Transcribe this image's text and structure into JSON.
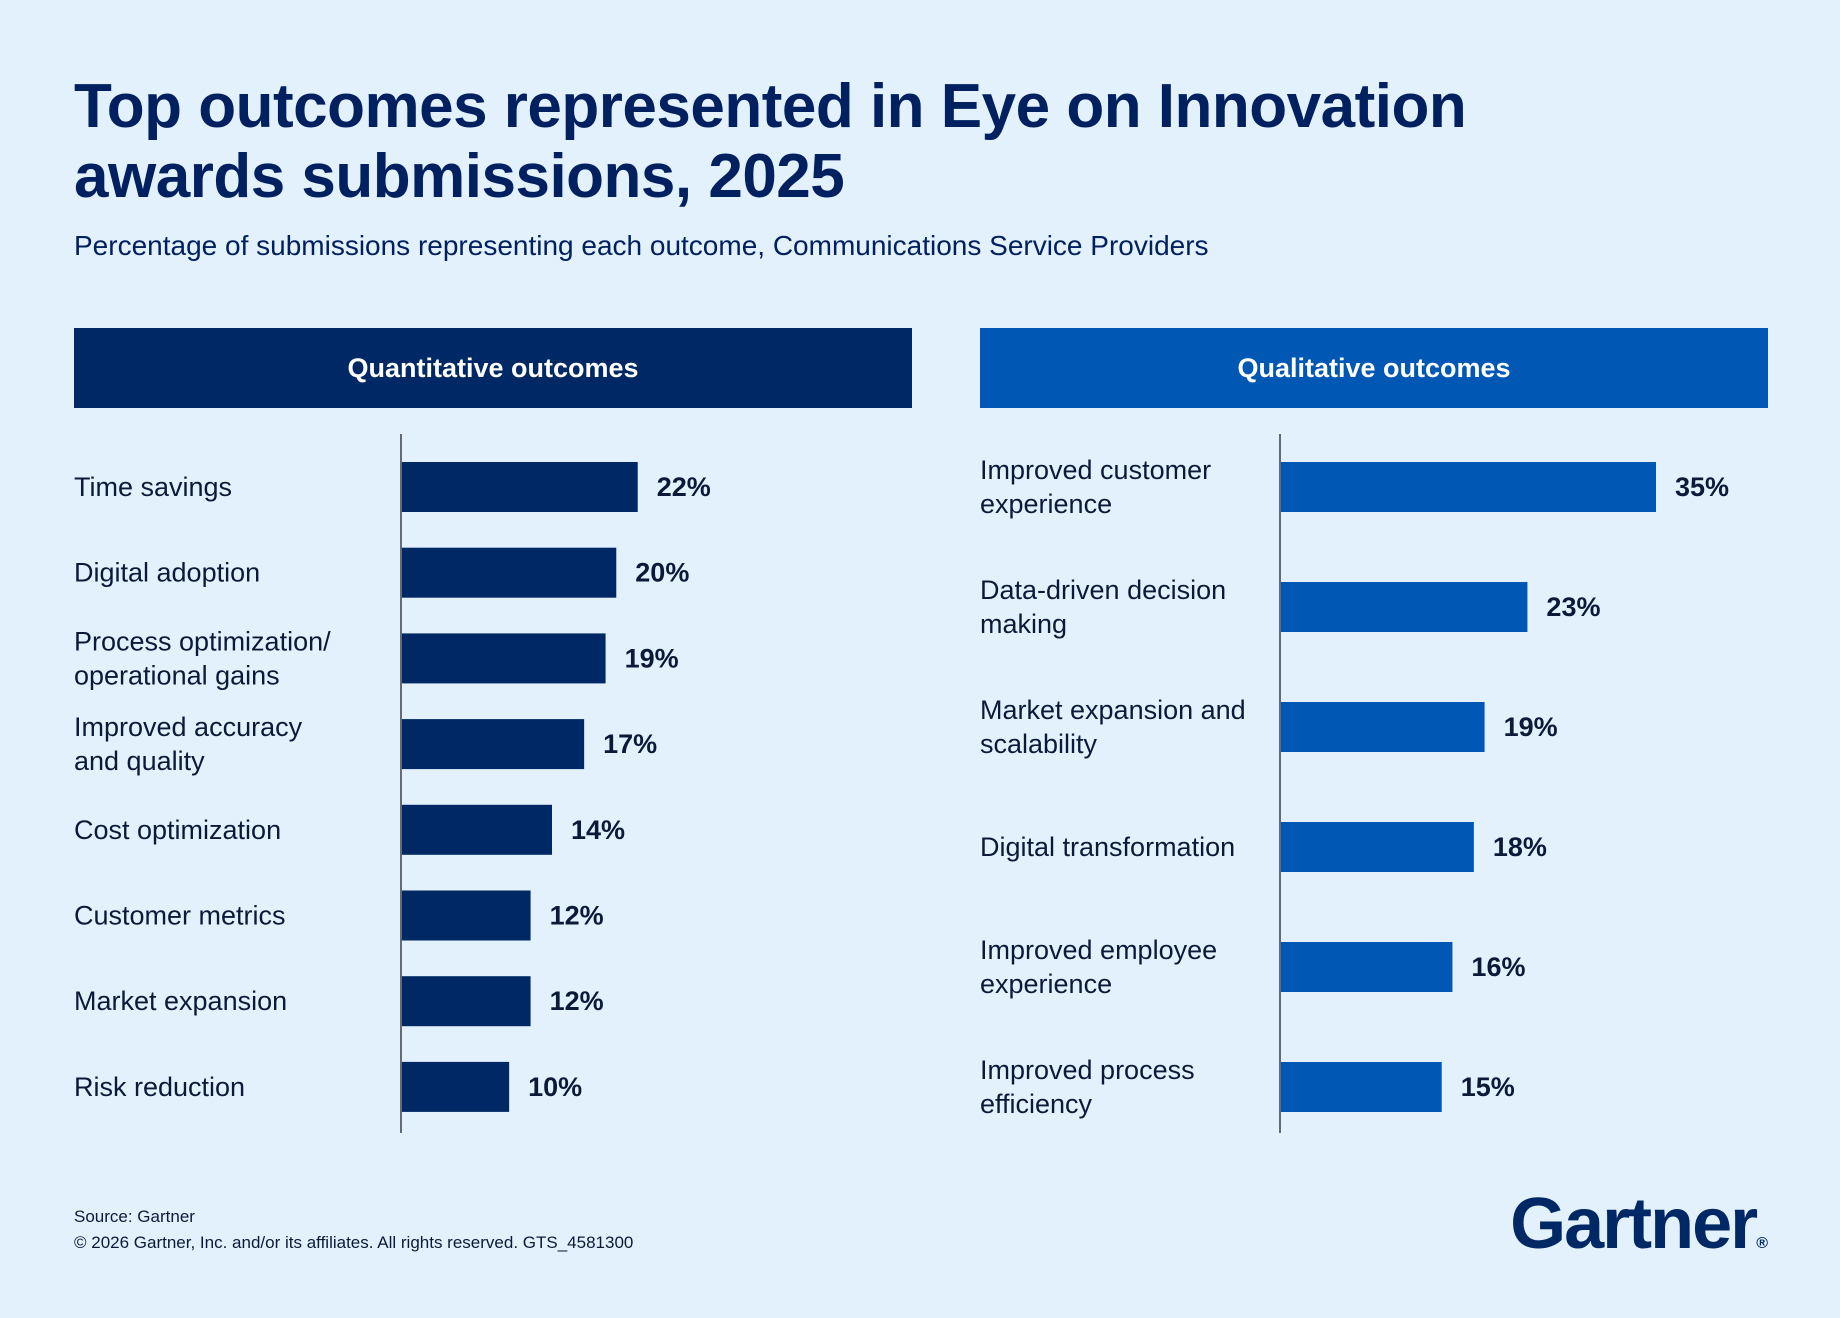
{
  "title": "Top outcomes represented in Eye on Innovation awards submissions, 2025",
  "subtitle": "Percentage of submissions representing each outcome, Communications Service Providers",
  "colors": {
    "background": "#e3f1fc",
    "quantitative": "#002864",
    "qualitative": "#0057b4",
    "title": "#002060"
  },
  "chart_data": [
    {
      "type": "bar",
      "orientation": "horizontal",
      "title": "Quantitative outcomes",
      "categories": [
        [
          "Time savings"
        ],
        [
          "Digital adoption"
        ],
        [
          "Process optimization/",
          "operational gains"
        ],
        [
          "Improved accuracy",
          "and quality"
        ],
        [
          "Cost optimization"
        ],
        [
          "Customer metrics"
        ],
        [
          "Market expansion"
        ],
        [
          "Risk reduction"
        ]
      ],
      "values": [
        22,
        20,
        19,
        17,
        14,
        12,
        12,
        10
      ],
      "value_labels": [
        "22%",
        "20%",
        "19%",
        "17%",
        "14%",
        "12%",
        "12%",
        "10%"
      ],
      "unit": "%",
      "xlim": [
        0,
        35
      ],
      "grid": false,
      "color": "#002864"
    },
    {
      "type": "bar",
      "orientation": "horizontal",
      "title": "Qualitative outcomes",
      "categories": [
        [
          "Improved customer",
          "experience"
        ],
        [
          "Data-driven decision",
          "making"
        ],
        [
          "Market expansion and",
          "scalability"
        ],
        [
          "Digital transformation"
        ],
        [
          "Improved employee",
          "experience"
        ],
        [
          "Improved process",
          "efficiency"
        ]
      ],
      "values": [
        35,
        23,
        19,
        18,
        16,
        15
      ],
      "value_labels": [
        "35%",
        "23%",
        "19%",
        "18%",
        "16%",
        "15%"
      ],
      "unit": "%",
      "xlim": [
        0,
        35
      ],
      "grid": false,
      "color": "#0057b4"
    }
  ],
  "footer": {
    "source": "Source: Gartner",
    "copyright": "© 2026 Gartner, Inc. and/or its affiliates. All rights reserved. GTS_4581300"
  },
  "logo": {
    "text": "Gartner",
    "mark": "®"
  }
}
